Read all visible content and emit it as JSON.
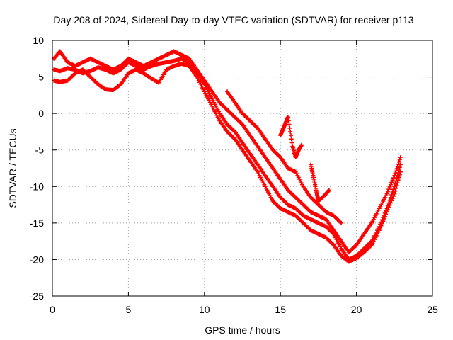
{
  "chart_data": {
    "type": "scatter",
    "title": "Day 208 of 2024, Sidereal Day-to-day VTEC variation (SDTVAR) for receiver p113",
    "xlabel": "GPS time / hours",
    "ylabel": "SDTVAR / TECUs",
    "xlim": [
      0,
      25
    ],
    "ylim": [
      -25,
      10
    ],
    "xticks": [
      0,
      5,
      10,
      15,
      20,
      25
    ],
    "yticks": [
      -25,
      -20,
      -15,
      -10,
      -5,
      0,
      5,
      10
    ],
    "grid": true,
    "marker": "plus",
    "color": "#ff0000",
    "series": [
      {
        "x": [
          0.1,
          0.5,
          1.0,
          1.5,
          2.0,
          2.5,
          3.0,
          3.5,
          4.0,
          4.5,
          5.0,
          5.5,
          6.0,
          6.5,
          7.0,
          7.5,
          8.0,
          8.5,
          9.0,
          9.5,
          10.0,
          10.5,
          11.0,
          11.5,
          12.0,
          12.5,
          13.0,
          13.5,
          14.0,
          14.5,
          15.0,
          15.5,
          16.0,
          16.5,
          17.0,
          17.5,
          18.0,
          18.5,
          19.0,
          19.5,
          20.0,
          20.5,
          21.0,
          21.5,
          22.0,
          22.5,
          22.9
        ],
        "y": [
          6.0,
          5.8,
          6.2,
          6.0,
          5.5,
          5.8,
          6.3,
          6.0,
          5.5,
          6.0,
          7.0,
          6.5,
          6.0,
          6.5,
          6.8,
          7.0,
          7.2,
          7.5,
          7.0,
          5.5,
          4.0,
          2.0,
          0.0,
          -1.5,
          -2.5,
          -4.0,
          -5.5,
          -7.0,
          -8.5,
          -10.0,
          -11.5,
          -12.5,
          -13.0,
          -14.0,
          -14.5,
          -15.0,
          -15.5,
          -16.5,
          -18.5,
          -20.0,
          -19.5,
          -18.5,
          -17.5,
          -15.5,
          -13.0,
          -10.0,
          -7.0
        ]
      },
      {
        "x": [
          0.1,
          0.5,
          1.0,
          1.5,
          2.0,
          2.5,
          3.0,
          3.5,
          4.0,
          4.5,
          5.0,
          5.5,
          6.0,
          6.5,
          7.0,
          7.5,
          8.0,
          8.5,
          9.0,
          9.5,
          10.0,
          10.5,
          11.0,
          11.5,
          12.0,
          12.5,
          13.0,
          13.5,
          14.0,
          14.5,
          15.0,
          15.5,
          16.0,
          16.5,
          17.0,
          17.5,
          18.0,
          18.5,
          19.0,
          19.5,
          20.0,
          20.5,
          21.0,
          21.5,
          22.0,
          22.5,
          22.9
        ],
        "y": [
          7.5,
          8.5,
          7.0,
          6.5,
          7.0,
          7.5,
          7.0,
          6.5,
          6.0,
          6.5,
          7.5,
          7.0,
          6.5,
          7.0,
          7.5,
          8.0,
          8.5,
          8.0,
          7.5,
          6.0,
          4.5,
          3.0,
          1.5,
          0.5,
          -0.5,
          -1.5,
          -3.0,
          -4.5,
          -6.0,
          -7.5,
          -9.0,
          -10.5,
          -11.5,
          -12.5,
          -13.5,
          -14.0,
          -14.5,
          -16.0,
          -17.5,
          -19.0,
          -18.0,
          -16.5,
          -15.0,
          -13.0,
          -11.0,
          -8.5,
          -6.0
        ]
      },
      {
        "x": [
          0.1,
          0.5,
          1.0,
          1.5,
          2.0,
          2.5,
          3.0,
          3.5,
          4.0,
          4.5,
          5.0,
          5.5,
          6.0,
          6.5,
          7.0,
          7.5,
          8.0,
          8.5,
          9.0,
          9.5,
          10.0,
          10.5,
          11.0,
          11.5,
          12.0,
          12.5,
          13.0,
          13.5,
          14.0,
          14.5,
          15.0,
          15.5,
          16.0,
          16.5,
          17.0,
          17.5,
          18.0,
          18.5,
          19.0,
          19.5,
          20.0,
          20.5,
          21.0,
          21.5,
          22.0,
          22.5,
          22.9
        ],
        "y": [
          4.5,
          4.3,
          4.5,
          5.5,
          6.0,
          5.0,
          4.0,
          3.3,
          3.2,
          4.0,
          5.5,
          6.0,
          5.5,
          4.8,
          4.2,
          6.0,
          6.5,
          6.8,
          6.5,
          5.0,
          3.0,
          1.0,
          -1.0,
          -2.5,
          -3.5,
          -5.0,
          -6.5,
          -8.0,
          -10.0,
          -12.0,
          -13.0,
          -13.5,
          -14.0,
          -15.0,
          -16.0,
          -16.5,
          -17.0,
          -18.0,
          -19.5,
          -20.3,
          -19.8,
          -19.0,
          -18.0,
          -16.0,
          -13.5,
          -11.0,
          -8.0
        ]
      },
      {
        "x": [
          11.5,
          12.0,
          12.5,
          13.0,
          13.5,
          14.0,
          14.5,
          15.0,
          15.5,
          16.0,
          16.5,
          17.0,
          17.5,
          18.0,
          18.5,
          19.0
        ],
        "y": [
          3.0,
          1.5,
          0.0,
          -1.0,
          -2.0,
          -3.5,
          -5.0,
          -6.0,
          -7.5,
          -8.0,
          -10.0,
          -11.5,
          -12.5,
          -13.5,
          -14.0,
          -15.0
        ]
      },
      {
        "x": [
          15.0,
          15.2,
          15.4,
          15.5,
          15.8,
          16.0,
          16.2,
          16.4
        ],
        "y": [
          -3.0,
          -2.0,
          -1.0,
          -0.5,
          -4.5,
          -6.0,
          -5.0,
          -4.3
        ]
      },
      {
        "x": [
          17.0,
          17.2,
          17.4,
          17.5,
          18.0,
          18.2
        ],
        "y": [
          -7.0,
          -9.0,
          -11.0,
          -12.0,
          -11.0,
          -10.5
        ]
      }
    ]
  }
}
